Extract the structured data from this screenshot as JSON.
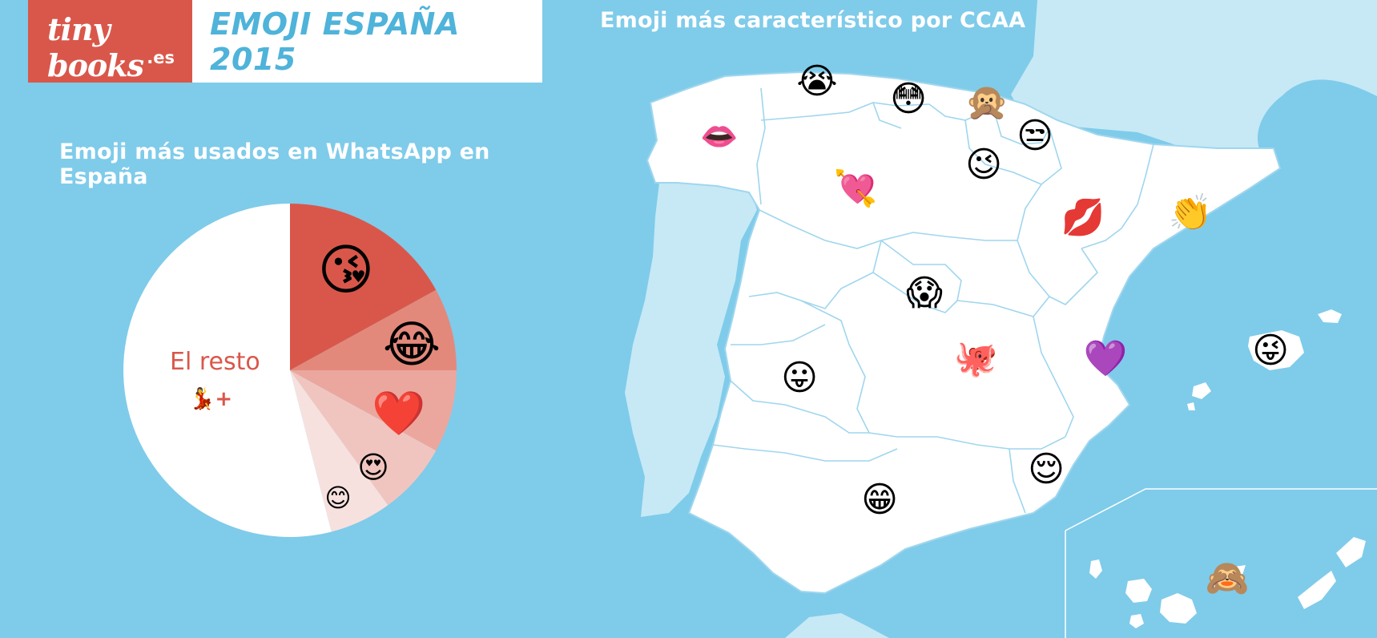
{
  "header": {
    "logo_text": "tiny books",
    "logo_sub": ".es",
    "title": "EMOJI ESPAÑA 2015"
  },
  "pie": {
    "title": "Emoji más usados en WhatsApp en España",
    "rest_label": "El resto",
    "rest_suffix": "💃+"
  },
  "map": {
    "title": "Emoji más característico por CCAA"
  },
  "chart_data": {
    "type": "pie",
    "title": "Emoji más usados en WhatsApp en España",
    "slices": [
      {
        "label": "😘",
        "value": 17,
        "color": "#d9574a"
      },
      {
        "label": "😂",
        "value": 8,
        "color": "#e3897c"
      },
      {
        "label": "❤️",
        "value": 8,
        "color": "#eba79e"
      },
      {
        "label": "😍",
        "value": 7,
        "color": "#f1c5bf"
      },
      {
        "label": "😊",
        "value": 6,
        "color": "#f7e1de"
      },
      {
        "label": "El resto",
        "value": 54,
        "color": "#ffffff"
      }
    ]
  },
  "regions": [
    {
      "name": "Galicia",
      "emoji": "👄"
    },
    {
      "name": "Asturias",
      "emoji": "😭"
    },
    {
      "name": "Cantabria",
      "emoji": "😳"
    },
    {
      "name": "País Vasco",
      "emoji": "🙊"
    },
    {
      "name": "Navarra",
      "emoji": "😒"
    },
    {
      "name": "La Rioja",
      "emoji": "😉"
    },
    {
      "name": "Castilla y León",
      "emoji": "💘"
    },
    {
      "name": "Aragón",
      "emoji": "💋"
    },
    {
      "name": "Cataluña",
      "emoji": "👏"
    },
    {
      "name": "Madrid",
      "emoji": "😱"
    },
    {
      "name": "Extremadura",
      "emoji": "😛"
    },
    {
      "name": "Castilla-La Mancha",
      "emoji": "🐙"
    },
    {
      "name": "Comunidad Valenciana",
      "emoji": "💜"
    },
    {
      "name": "Islas Baleares",
      "emoji": "😜"
    },
    {
      "name": "Murcia",
      "emoji": "😌"
    },
    {
      "name": "Andalucía",
      "emoji": "😁"
    },
    {
      "name": "Canarias",
      "emoji": "🙈"
    }
  ]
}
